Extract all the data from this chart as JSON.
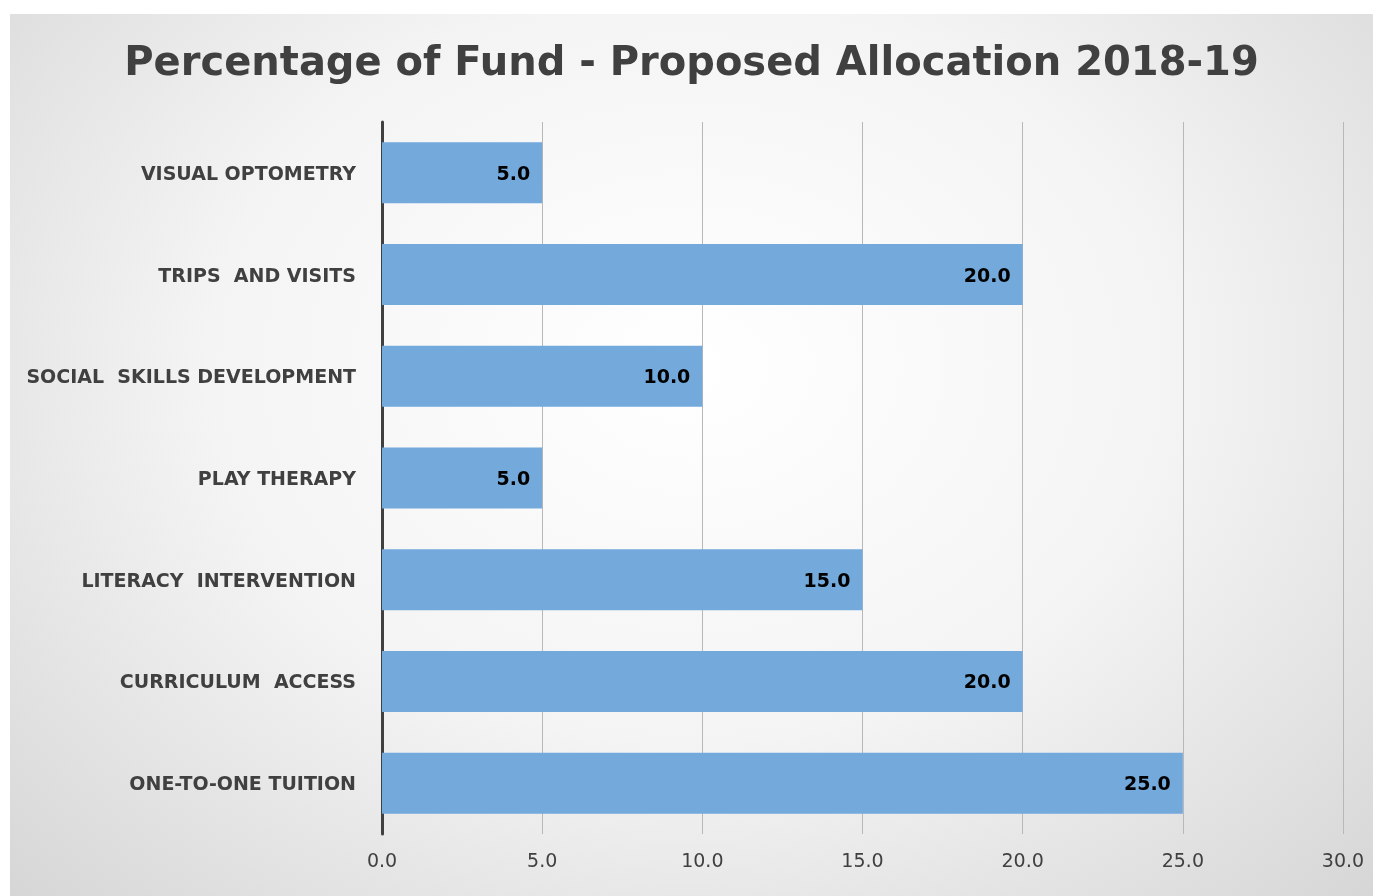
{
  "chart_data": {
    "type": "bar",
    "orientation": "horizontal",
    "title": "Percentage of Fund - Proposed Allocation 2018-19",
    "categories": [
      "VISUAL OPTOMETRY",
      "TRIPS  AND VISITS",
      "SOCIAL  SKILLS DEVELOPMENT",
      "PLAY THERAPY",
      "LITERACY  INTERVENTION",
      "CURRICULUM  ACCESS",
      "ONE-TO-ONE TUITION"
    ],
    "values": [
      5,
      20,
      10,
      5,
      15,
      20,
      25
    ],
    "value_labels": [
      "5.0",
      "20.0",
      "10.0",
      "5.0",
      "15.0",
      "20.0",
      "25.0"
    ],
    "color": "#73a9db",
    "xlim": [
      0,
      30
    ],
    "xticks": [
      {
        "value": 0,
        "label": "0.0"
      },
      {
        "value": 5,
        "label": "5.0"
      },
      {
        "value": 10,
        "label": "10.0"
      },
      {
        "value": 15,
        "label": "15.0"
      },
      {
        "value": 20,
        "label": "20.0"
      },
      {
        "value": 25,
        "label": "25.0"
      },
      {
        "value": 30,
        "label": "30.0"
      }
    ],
    "grid": "x"
  }
}
